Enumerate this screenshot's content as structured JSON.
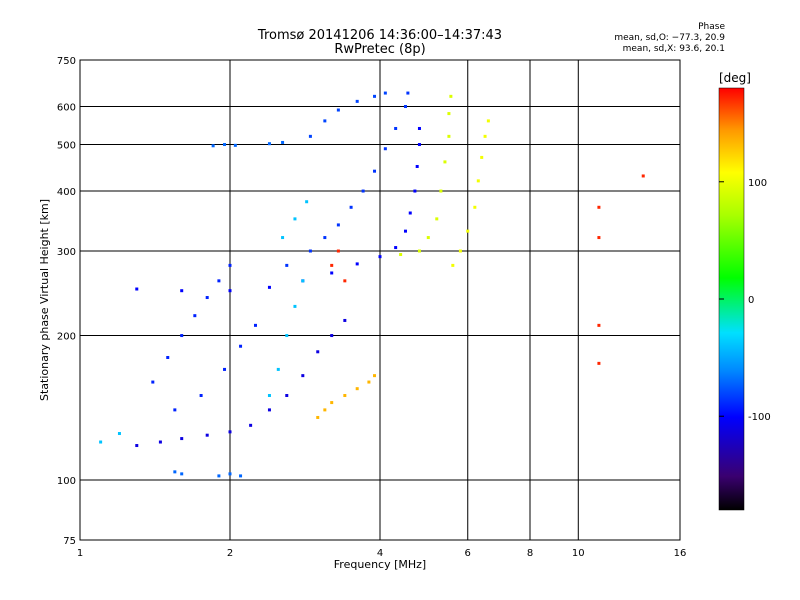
{
  "chart_data": {
    "type": "scatter",
    "title": "Tromsø 20141206 14:36:00–14:37:43",
    "subtitle": "RwPretec (8p)",
    "xlabel": "Frequency [MHz]",
    "ylabel": "Stationary phase Virtual Height [km]",
    "x_scale": "log",
    "y_scale": "log",
    "xlim": [
      1,
      16
    ],
    "ylim": [
      75,
      750
    ],
    "x_ticks": [
      1,
      2,
      4,
      6,
      8,
      10,
      16
    ],
    "x_tick_labels": [
      "1",
      "2",
      "4",
      "6",
      "8",
      "10",
      "16"
    ],
    "y_ticks": [
      75,
      100,
      200,
      300,
      400,
      500,
      600,
      750
    ],
    "y_tick_labels": [
      "75",
      "100",
      "200",
      "300",
      "400",
      "500",
      "600",
      "750"
    ],
    "grid": true,
    "phase_stats": {
      "heading": "Phase",
      "line_o": "mean, sd,O: −77.3, 20.9",
      "line_x": "mean, sd,X:  93.6, 20.1"
    },
    "colorbar": {
      "label": "[deg]",
      "range": [
        -180,
        180
      ],
      "ticks": [
        100,
        0,
        -100
      ],
      "tick_labels": [
        "100",
        "0",
        "-100"
      ]
    },
    "series": [
      {
        "phase": -110,
        "points": [
          [
            1.3,
            118
          ],
          [
            1.45,
            120
          ],
          [
            1.6,
            122
          ],
          [
            1.8,
            124
          ],
          [
            2.0,
            126
          ],
          [
            2.2,
            130
          ],
          [
            2.4,
            140
          ],
          [
            2.6,
            150
          ],
          [
            2.8,
            165
          ],
          [
            3.0,
            185
          ],
          [
            3.2,
            200
          ],
          [
            3.4,
            215
          ]
        ]
      },
      {
        "phase": -100,
        "points": [
          [
            1.3,
            250
          ],
          [
            1.6,
            248
          ],
          [
            2.0,
            248
          ],
          [
            2.4,
            252
          ],
          [
            2.8,
            260
          ],
          [
            3.2,
            270
          ],
          [
            3.6,
            282
          ],
          [
            4.0,
            292
          ],
          [
            4.3,
            305
          ],
          [
            4.5,
            330
          ],
          [
            4.6,
            360
          ],
          [
            4.7,
            400
          ],
          [
            4.75,
            450
          ],
          [
            4.8,
            500
          ],
          [
            4.8,
            540
          ]
        ]
      },
      {
        "phase": -90,
        "points": [
          [
            1.4,
            160
          ],
          [
            1.5,
            180
          ],
          [
            1.6,
            200
          ],
          [
            1.7,
            220
          ],
          [
            1.8,
            240
          ],
          [
            1.9,
            260
          ],
          [
            2.0,
            280
          ],
          [
            1.55,
            140
          ],
          [
            1.75,
            150
          ],
          [
            1.95,
            170
          ],
          [
            2.1,
            190
          ],
          [
            2.25,
            210
          ]
        ]
      },
      {
        "phase": -85,
        "points": [
          [
            2.6,
            280
          ],
          [
            2.9,
            300
          ],
          [
            3.1,
            320
          ],
          [
            3.3,
            340
          ],
          [
            3.5,
            370
          ],
          [
            3.7,
            400
          ],
          [
            3.9,
            440
          ],
          [
            4.1,
            490
          ],
          [
            4.3,
            540
          ],
          [
            4.5,
            600
          ],
          [
            4.55,
            640
          ]
        ]
      },
      {
        "phase": -80,
        "points": [
          [
            2.9,
            520
          ],
          [
            3.1,
            560
          ],
          [
            3.3,
            590
          ],
          [
            3.6,
            615
          ],
          [
            3.9,
            630
          ],
          [
            4.1,
            640
          ]
        ]
      },
      {
        "phase": -70,
        "points": [
          [
            1.85,
            497
          ],
          [
            1.95,
            500
          ],
          [
            2.05,
            498
          ],
          [
            2.4,
            502
          ],
          [
            2.55,
            505
          ],
          [
            1.9,
            102
          ],
          [
            2.0,
            103
          ],
          [
            2.1,
            102
          ],
          [
            1.6,
            103
          ],
          [
            1.55,
            104
          ]
        ]
      },
      {
        "phase": -40,
        "points": [
          [
            1.1,
            120
          ],
          [
            1.2,
            125
          ],
          [
            2.4,
            150
          ],
          [
            2.5,
            170
          ],
          [
            2.6,
            200
          ],
          [
            2.7,
            230
          ],
          [
            2.8,
            260
          ],
          [
            2.55,
            320
          ],
          [
            2.7,
            350
          ],
          [
            2.85,
            380
          ]
        ]
      },
      {
        "phase": 90,
        "points": [
          [
            4.4,
            295
          ],
          [
            4.8,
            300
          ],
          [
            5.0,
            320
          ],
          [
            5.2,
            350
          ],
          [
            5.3,
            400
          ],
          [
            5.4,
            460
          ],
          [
            5.5,
            520
          ],
          [
            5.5,
            580
          ],
          [
            5.55,
            630
          ]
        ]
      },
      {
        "phase": 100,
        "points": [
          [
            5.6,
            280
          ],
          [
            5.8,
            300
          ],
          [
            6.0,
            330
          ],
          [
            6.2,
            370
          ],
          [
            6.3,
            420
          ],
          [
            6.4,
            470
          ],
          [
            6.5,
            520
          ],
          [
            6.6,
            560
          ]
        ]
      },
      {
        "phase": 130,
        "points": [
          [
            3.0,
            135
          ],
          [
            3.1,
            140
          ],
          [
            3.2,
            145
          ],
          [
            3.4,
            150
          ],
          [
            3.6,
            155
          ],
          [
            3.8,
            160
          ],
          [
            3.9,
            165
          ]
        ]
      },
      {
        "phase": 170,
        "points": [
          [
            3.4,
            260
          ],
          [
            3.2,
            280
          ],
          [
            3.3,
            300
          ],
          [
            11.0,
            370
          ],
          [
            11.0,
            320
          ],
          [
            11.0,
            210
          ],
          [
            11.0,
            175
          ],
          [
            13.5,
            430
          ]
        ]
      }
    ]
  }
}
